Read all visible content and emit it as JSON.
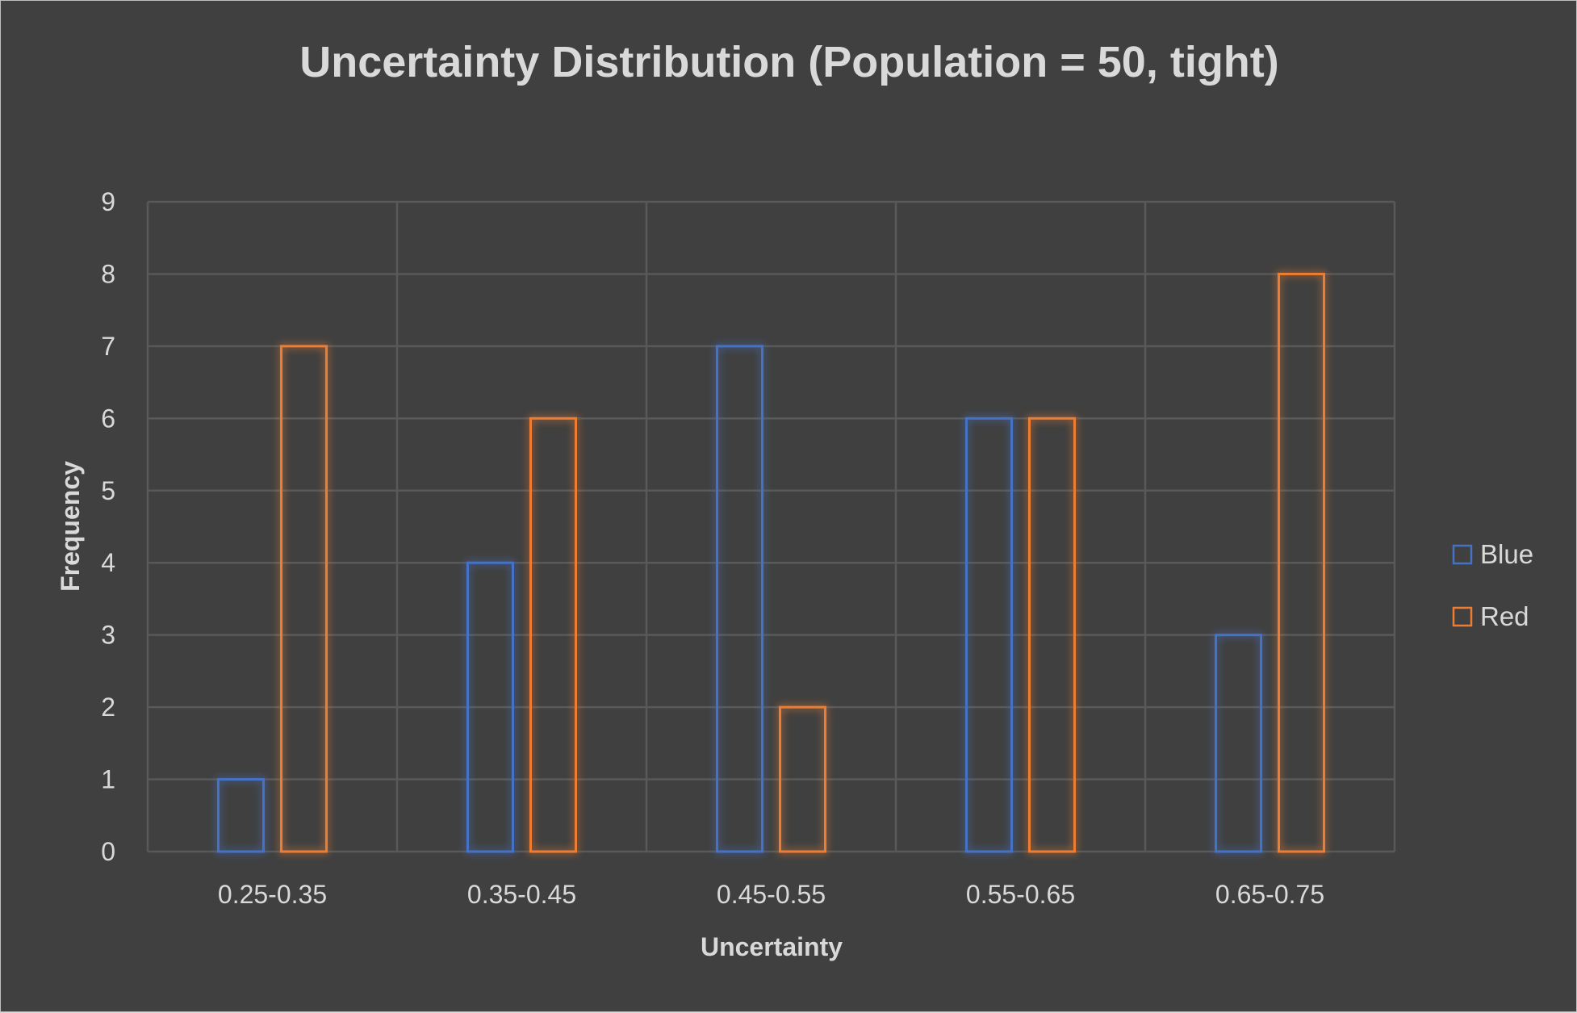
{
  "chart_data": {
    "type": "bar",
    "title": "Uncertainty Distribution (Population = 50, tight)",
    "xlabel": "Uncertainty",
    "ylabel": "Frequency",
    "categories": [
      "0.25-0.35",
      "0.35-0.45",
      "0.45-0.55",
      "0.55-0.65",
      "0.65-0.75"
    ],
    "series": [
      {
        "name": "Blue",
        "values": [
          1,
          4,
          7,
          6,
          3
        ],
        "color": "#4472c4"
      },
      {
        "name": "Red",
        "values": [
          7,
          6,
          2,
          6,
          8
        ],
        "color": "#ed7d31"
      }
    ],
    "ylim": [
      0,
      9
    ],
    "yticks": [
      0,
      1,
      2,
      3,
      4,
      5,
      6,
      7,
      8,
      9
    ],
    "grid": true,
    "legend_position": "right",
    "bar_style": "outline-glow",
    "background_color": "#404040",
    "grid_color": "#595959",
    "text_color": "#d9d9d9"
  }
}
